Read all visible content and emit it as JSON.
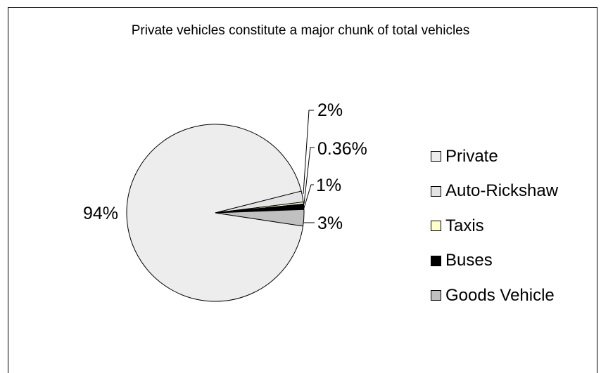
{
  "chart_data": {
    "type": "pie",
    "title": "Private vehicles constitute a major chunk of total vehicles",
    "categories": [
      "Private",
      "Auto-Rickshaw",
      "Taxis",
      "Buses",
      "Goods Vehicle"
    ],
    "values": [
      94,
      2,
      0.36,
      1,
      3
    ],
    "data_labels": [
      "94%",
      "2%",
      "0.36%",
      "1%",
      "3%"
    ],
    "colors": [
      "#EDEDED",
      "#E4E4E4",
      "#FFFFCC",
      "#000000",
      "#C0C0C0"
    ],
    "legend_position": "right"
  }
}
